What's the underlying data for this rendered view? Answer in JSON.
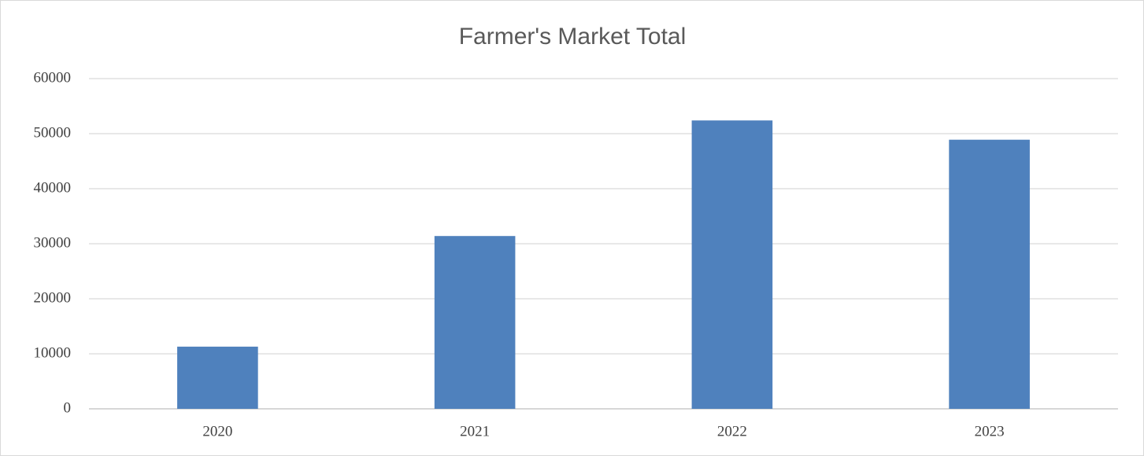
{
  "chart_data": {
    "type": "bar",
    "title": "Farmer's Market Total",
    "categories": [
      "2020",
      "2021",
      "2022",
      "2023"
    ],
    "values": [
      11300,
      31400,
      52400,
      48900
    ],
    "color": "#4f81bd",
    "ylim": [
      0,
      60000
    ],
    "yticks": [
      0,
      10000,
      20000,
      30000,
      40000,
      50000,
      60000
    ],
    "grid": true
  }
}
